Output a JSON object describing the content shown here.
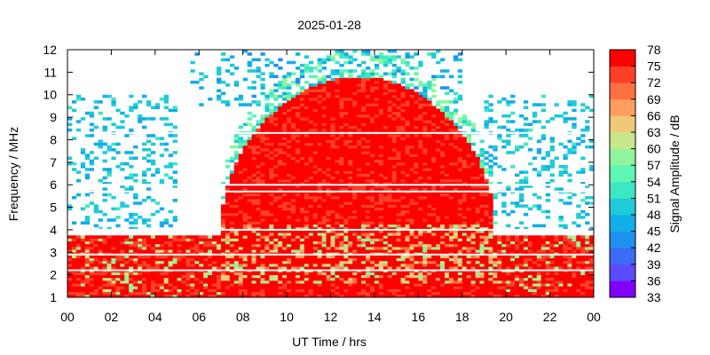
{
  "chart_data": {
    "type": "heatmap",
    "title": "2025-01-28",
    "xlabel": "UT Time / hrs",
    "ylabel": "Frequency / MHz",
    "colorbar_label": "Signal Amplitude / dB",
    "xlim": [
      0,
      24
    ],
    "ylim": [
      1,
      12
    ],
    "x_ticks": [
      "00",
      "02",
      "04",
      "06",
      "08",
      "10",
      "12",
      "14",
      "16",
      "18",
      "20",
      "22",
      "00"
    ],
    "y_ticks": [
      "1",
      "2",
      "3",
      "4",
      "5",
      "6",
      "7",
      "8",
      "9",
      "10",
      "11",
      "12"
    ],
    "colorbar_ticks": [
      "78",
      "75",
      "72",
      "69",
      "66",
      "63",
      "60",
      "57",
      "54",
      "51",
      "48",
      "45",
      "42",
      "39",
      "36",
      "33"
    ],
    "colorbar_range_db": [
      33,
      78
    ],
    "colorbar_colors": [
      "#8000ff",
      "#5a4bff",
      "#3c6bf5",
      "#1e90f0",
      "#12aee8",
      "#1ecbd6",
      "#3ee6c4",
      "#5ff5b4",
      "#8ef59c",
      "#c8e68a",
      "#f0c87a",
      "#ff9e60",
      "#ff7040",
      "#ff4026",
      "#ff0000"
    ],
    "features": {
      "daytime_strong_region": {
        "start_hr": 7.0,
        "end_hr": 19.5,
        "max_freq_mhz": 10.8,
        "level_db": 78
      },
      "night_low_band": {
        "max_freq_mhz": 3.7,
        "level_db": 75
      },
      "scatter_ceiling_mhz": 12.0
    }
  }
}
